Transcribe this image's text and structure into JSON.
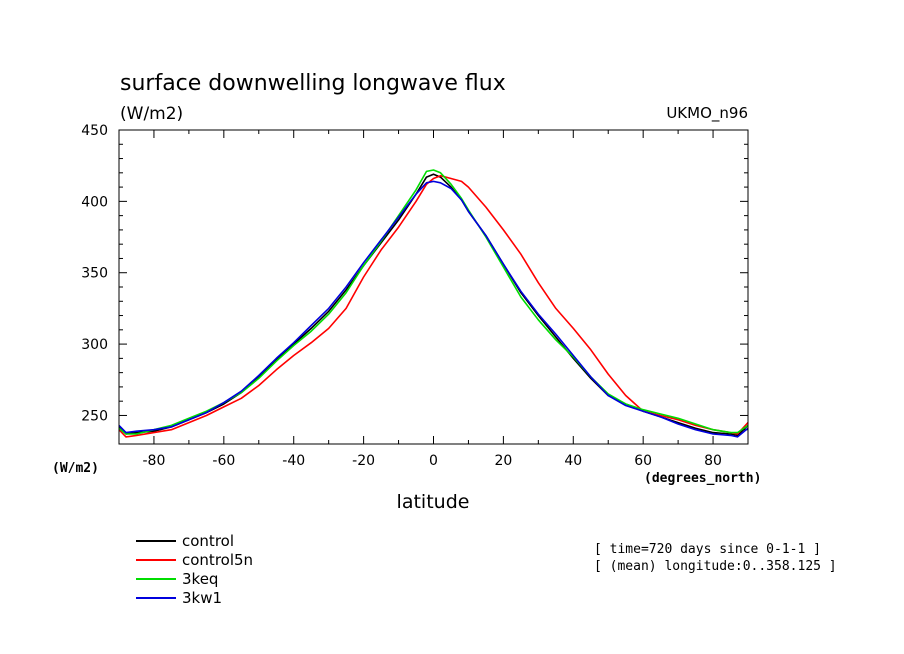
{
  "chart_data": {
    "type": "line",
    "title": "surface downwelling longwave flux",
    "units_label": "(W/m2)",
    "model_label": "UKMO_n96",
    "xlabel": "latitude",
    "xunits": "(degrees_north)",
    "yunits": "(W/m2)",
    "xlim": [
      -90,
      90
    ],
    "ylim": [
      230,
      450
    ],
    "xticks": [
      -80,
      -60,
      -40,
      -20,
      0,
      20,
      40,
      60,
      80
    ],
    "yticks": [
      250,
      300,
      350,
      400,
      450
    ],
    "x": [
      -90,
      -88,
      -85,
      -80,
      -75,
      -70,
      -65,
      -60,
      -55,
      -50,
      -45,
      -40,
      -35,
      -30,
      -25,
      -20,
      -15,
      -10,
      -5,
      -2,
      0,
      2,
      5,
      8,
      10,
      15,
      20,
      25,
      30,
      35,
      40,
      45,
      50,
      55,
      60,
      65,
      70,
      75,
      80,
      85,
      87,
      90
    ],
    "series": [
      {
        "name": "control",
        "color": "#000000",
        "values": [
          242,
          237,
          238,
          239,
          242,
          247,
          252,
          258,
          266,
          277,
          289,
          300,
          311,
          323,
          338,
          355,
          371,
          387,
          405,
          417,
          419,
          417,
          410,
          401,
          393,
          376,
          356,
          336,
          320,
          305,
          290,
          276,
          264,
          258,
          253,
          249,
          245,
          241,
          238,
          237,
          236,
          243
        ]
      },
      {
        "name": "control5n",
        "color": "#ff0000",
        "values": [
          240,
          235,
          236,
          238,
          240,
          245,
          250,
          256,
          262,
          271,
          282,
          292,
          301,
          311,
          325,
          347,
          366,
          382,
          400,
          412,
          416,
          418,
          416,
          414,
          410,
          396,
          380,
          363,
          343,
          325,
          311,
          296,
          279,
          264,
          253,
          250,
          247,
          243,
          240,
          238,
          237,
          245
        ]
      },
      {
        "name": "3keq",
        "color": "#00dd00",
        "values": [
          241,
          237,
          237,
          240,
          243,
          248,
          253,
          259,
          266,
          276,
          288,
          299,
          309,
          321,
          336,
          355,
          372,
          390,
          408,
          421,
          422,
          420,
          412,
          402,
          394,
          375,
          354,
          333,
          317,
          303,
          291,
          277,
          265,
          258,
          254,
          251,
          248,
          244,
          240,
          238,
          238,
          243
        ]
      },
      {
        "name": "3kw1",
        "color": "#0000dd",
        "values": [
          243,
          238,
          239,
          240,
          242,
          247,
          252,
          259,
          267,
          278,
          290,
          301,
          313,
          325,
          340,
          357,
          373,
          389,
          405,
          413,
          414,
          413,
          409,
          401,
          393,
          376,
          356,
          337,
          321,
          307,
          292,
          277,
          264,
          257,
          253,
          249,
          244,
          240,
          237,
          236,
          235,
          241
        ]
      }
    ]
  },
  "info": {
    "line1": "[ time=720 days since 0-1-1 ]",
    "line2": "[ (mean) longitude:0..358.125 ]"
  }
}
